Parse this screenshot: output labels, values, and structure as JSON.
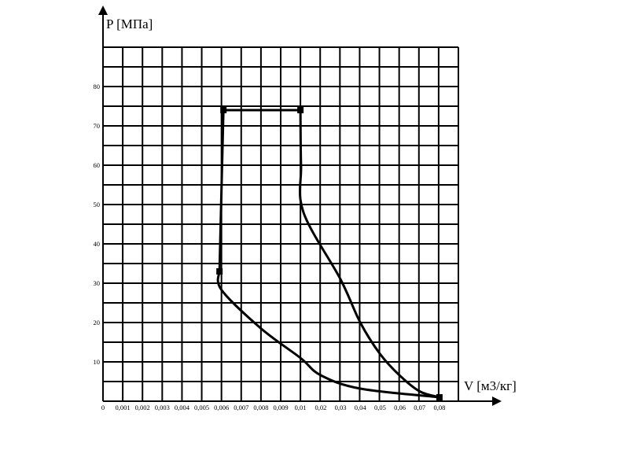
{
  "chart_data": {
    "type": "line",
    "title": "",
    "ylabel": "P [МПа]",
    "xlabel": "V [м3/кг]",
    "x_tick_labels": [
      "0",
      "0,001",
      "0,002",
      "0,003",
      "0,004",
      "0,005",
      "0,006",
      "0,007",
      "0,008",
      "0,009",
      "0,01",
      "0,02",
      "0,03",
      "0,04",
      "0,05",
      "0,06",
      "0,07",
      "0,08"
    ],
    "y_tick_labels": [
      "10",
      "20",
      "30",
      "40",
      "50",
      "60",
      "70",
      "80"
    ],
    "ylim": [
      0,
      90
    ],
    "grid": true,
    "legend": "none",
    "series": [
      {
        "segments": [
          {
            "kind": "compression",
            "points": [
              [
                0.08,
                1.0
              ],
              [
                0.04,
                3.2
              ],
              [
                0.02,
                6.6
              ],
              [
                0.01,
                11.0
              ],
              [
                0.008,
                18.5
              ],
              [
                0.006,
                28.3
              ],
              [
                0.0059,
                33.0
              ]
            ]
          },
          {
            "kind": "isochoric",
            "points": [
              [
                0.0059,
                33.0
              ],
              [
                0.0061,
                74.0
              ]
            ]
          },
          {
            "kind": "isobaric",
            "points": [
              [
                0.0061,
                74.0
              ],
              [
                0.01,
                74.0
              ]
            ]
          },
          {
            "kind": "expansion",
            "points": [
              [
                0.01,
                74.0
              ],
              [
                0.0103,
                60.0
              ],
              [
                0.0115,
                48.0
              ],
              [
                0.03,
                31.0
              ],
              [
                0.04,
                20.0
              ],
              [
                0.05,
                12.0
              ],
              [
                0.06,
                6.5
              ],
              [
                0.07,
                2.5
              ],
              [
                0.08,
                1.0
              ]
            ]
          }
        ],
        "markers": [
          [
            0.0059,
            33.0
          ],
          [
            0.0061,
            74.0
          ],
          [
            0.01,
            74.0
          ],
          [
            0.08,
            1.0
          ]
        ]
      }
    ]
  }
}
